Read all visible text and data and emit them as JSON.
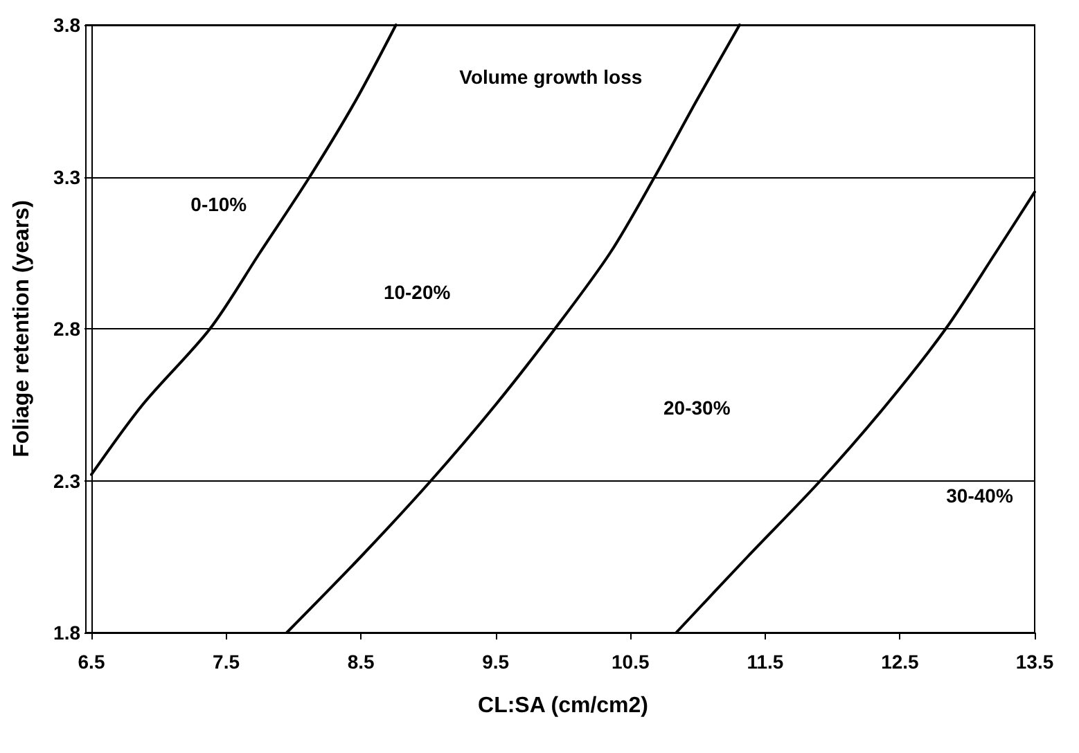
{
  "chart_data": {
    "type": "line",
    "xlabel": "CL:SA (cm/cm2)",
    "ylabel": "Foliage retention (years)",
    "xlim": [
      6.5,
      13.5
    ],
    "xticks": [
      6.5,
      7.5,
      8.5,
      9.5,
      10.5,
      11.5,
      12.5,
      13.5
    ],
    "ylim": [
      1.8,
      3.8
    ],
    "yticks": [
      1.8,
      2.3,
      2.8,
      3.3,
      3.8
    ],
    "grid": "y",
    "marker": "none",
    "line_style": "solid",
    "series": [
      {
        "color": "#000000",
        "x": [
          6.5,
          6.88,
          7.38,
          7.75,
          8.12,
          8.46,
          8.76
        ],
        "values": [
          2.32,
          2.55,
          2.8,
          3.05,
          3.3,
          3.55,
          3.8
        ]
      },
      {
        "color": "#000000",
        "x": [
          7.95,
          8.5,
          9.02,
          9.5,
          9.94,
          10.35,
          10.68,
          10.99,
          11.31
        ],
        "values": [
          1.8,
          2.05,
          2.3,
          2.55,
          2.8,
          3.05,
          3.3,
          3.55,
          3.8
        ]
      },
      {
        "color": "#000000",
        "x": [
          10.84,
          11.37,
          11.91,
          12.4,
          12.84,
          13.21,
          13.5
        ],
        "values": [
          1.8,
          2.05,
          2.3,
          2.55,
          2.8,
          3.05,
          3.25
        ]
      }
    ],
    "annotations": [
      "Volume growth loss",
      "0-10%",
      "10-20%",
      "20-30%",
      "30-40%"
    ]
  }
}
